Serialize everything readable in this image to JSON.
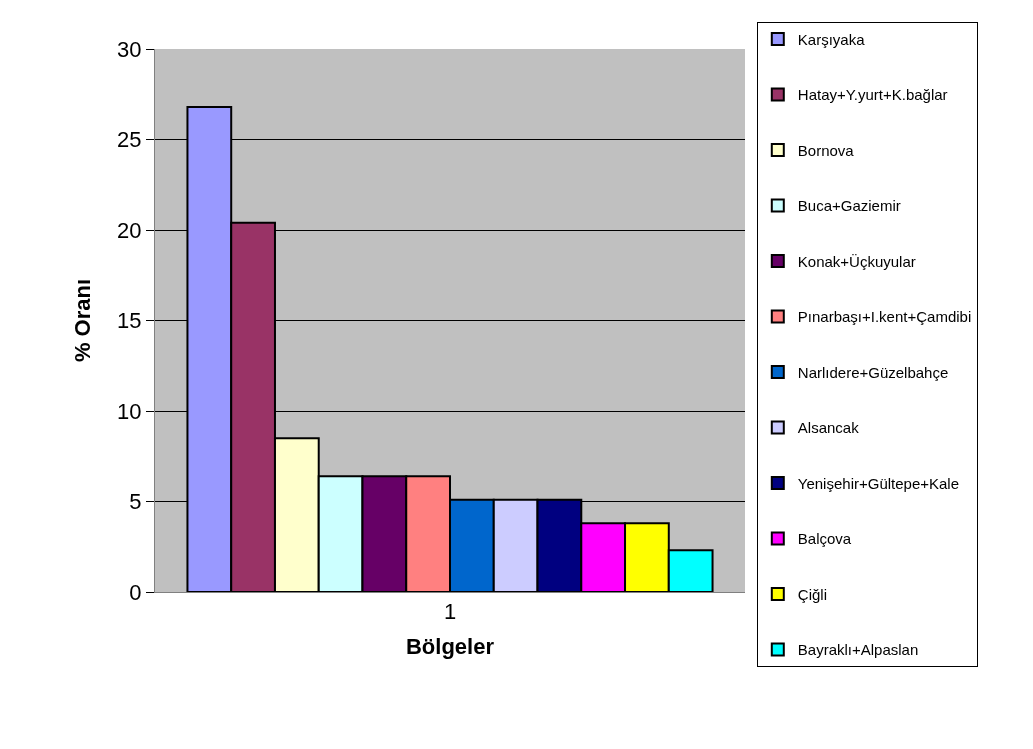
{
  "chart_data": {
    "type": "bar",
    "xlabel": "Bölgeler",
    "ylabel": "% Oranı",
    "categories": [
      "1"
    ],
    "series": [
      {
        "name": "Karşıyaka",
        "color": "#9999ff",
        "values": [
          26.8
        ]
      },
      {
        "name": "Hatay+Y.yurt+K.bağlar",
        "color": "#993366",
        "values": [
          20.4
        ]
      },
      {
        "name": "Bornova",
        "color": "#ffffcc",
        "values": [
          8.5
        ]
      },
      {
        "name": "Buca+Gaziemir",
        "color": "#ccffff",
        "values": [
          6.4
        ]
      },
      {
        "name": "Konak+Üçkuyular",
        "color": "#660066",
        "values": [
          6.4
        ]
      },
      {
        "name": "Pınarbaşı+I.kent+Çamdibi",
        "color": "#ff8080",
        "values": [
          6.4
        ]
      },
      {
        "name": "Narlıdere+Güzelbahçe",
        "color": "#0066cc",
        "values": [
          5.1
        ]
      },
      {
        "name": "Alsancak",
        "color": "#ccccff",
        "values": [
          5.1
        ]
      },
      {
        "name": "Yenişehir+Gültepe+Kale",
        "color": "#000080",
        "values": [
          5.1
        ]
      },
      {
        "name": "Balçova",
        "color": "#ff00ff",
        "values": [
          3.8
        ]
      },
      {
        "name": "Çiğli",
        "color": "#ffff00",
        "values": [
          3.8
        ]
      },
      {
        "name": "Bayraklı+Alpaslan",
        "color": "#00ffff",
        "values": [
          2.3
        ]
      }
    ],
    "ylim": [
      0,
      30
    ],
    "yticks": [
      0,
      5,
      10,
      15,
      20,
      25,
      30
    ],
    "grid": "y",
    "legend": "right"
  }
}
